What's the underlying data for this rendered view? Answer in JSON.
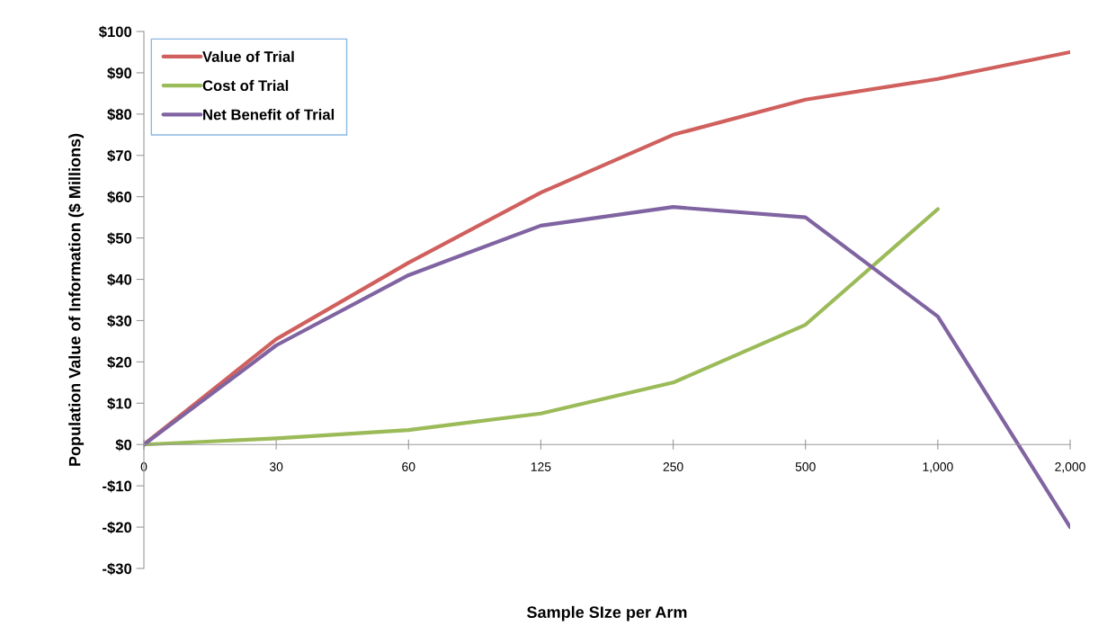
{
  "chart_data": {
    "type": "line",
    "xlabel": "Sample SIze per Arm",
    "ylabel": "Population Value of Information ($ Millions)",
    "categories": [
      "0",
      "30",
      "60",
      "125",
      "250",
      "500",
      "1,000",
      "2,000"
    ],
    "series": [
      {
        "name": "Value of Trial",
        "color": "#d0605e",
        "values": [
          0,
          25.5,
          44,
          61,
          75,
          83.5,
          88.5,
          95
        ]
      },
      {
        "name": "Cost of Trial",
        "color": "#9bbb59",
        "values": [
          0,
          1.5,
          3.5,
          7.5,
          15,
          29,
          57,
          null
        ]
      },
      {
        "name": "Net Benefit of Trial",
        "color": "#8064a2",
        "values": [
          0,
          24,
          41,
          53,
          57.5,
          55,
          31,
          -20
        ]
      }
    ],
    "ylim": [
      -30,
      100
    ],
    "yticks": [
      {
        "value": -30,
        "label": "-$30"
      },
      {
        "value": -20,
        "label": "-$20"
      },
      {
        "value": -10,
        "label": "-$10"
      },
      {
        "value": 0,
        "label": "$0"
      },
      {
        "value": 10,
        "label": "$10"
      },
      {
        "value": 20,
        "label": "$20"
      },
      {
        "value": 30,
        "label": "$30"
      },
      {
        "value": 40,
        "label": "$40"
      },
      {
        "value": 50,
        "label": "$50"
      },
      {
        "value": 60,
        "label": "$60"
      },
      {
        "value": 70,
        "label": "$70"
      },
      {
        "value": 80,
        "label": "$80"
      },
      {
        "value": 90,
        "label": "$90"
      },
      {
        "value": 100,
        "label": "$100"
      }
    ],
    "legend": "top left",
    "marker": "none",
    "line_style": "solid"
  }
}
